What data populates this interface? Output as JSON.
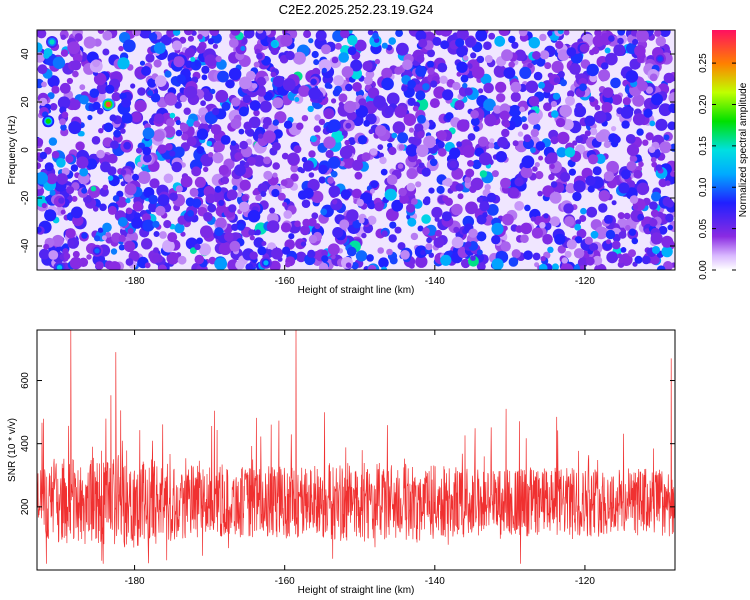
{
  "title": "C2E2.2025.252.23.19.G24",
  "chart_data": [
    {
      "type": "heatmap",
      "xlabel": "Height of straight line (km)",
      "ylabel": "Frequency (Hz)",
      "xlim": [
        -193,
        -108
      ],
      "ylim": [
        -50,
        50
      ],
      "xticks": [
        -180,
        -160,
        -140,
        -120
      ],
      "yticks": [
        -40,
        -20,
        0,
        20,
        40
      ],
      "colorbar": {
        "label": "Normalized spectral amplitude",
        "range": [
          0,
          0.29
        ],
        "ticks": [
          0,
          0.05,
          0.1,
          0.15,
          0.2,
          0.25
        ]
      },
      "hotspots": [
        {
          "x": -183.5,
          "y": 19,
          "value": 0.27
        },
        {
          "x": -191.5,
          "y": 12,
          "value": 0.18
        },
        {
          "x": -191.0,
          "y": 45,
          "value": 0.15
        },
        {
          "x": -162.5,
          "y": -47,
          "value": 0.12
        },
        {
          "x": -190.0,
          "y": -49,
          "value": 0.13
        },
        {
          "x": -185.0,
          "y": -42,
          "value": 0.1
        },
        {
          "x": -110.0,
          "y": 38,
          "value": 0.09
        }
      ]
    },
    {
      "type": "line",
      "xlabel": "Height of straight line (km)",
      "ylabel": "SNR (10 * v/v)",
      "xlim": [
        -193,
        -108
      ],
      "ylim": [
        0,
        760
      ],
      "xticks": [
        -180,
        -160,
        -140,
        -120
      ],
      "yticks": [
        200,
        400,
        600
      ],
      "series": [
        {
          "color": "#f03030",
          "baseline": 215,
          "spread": 110
        }
      ],
      "peaks": [
        {
          "x": -188.5,
          "y": 760
        },
        {
          "x": -182.5,
          "y": 690
        },
        {
          "x": -158.5,
          "y": 760
        },
        {
          "x": -130.5,
          "y": 510
        },
        {
          "x": -108.5,
          "y": 670
        }
      ]
    }
  ]
}
